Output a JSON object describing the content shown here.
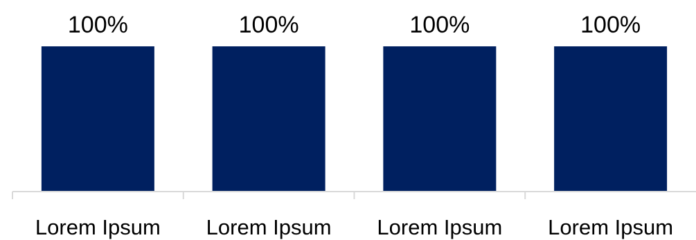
{
  "chart_data": {
    "type": "bar",
    "title": "",
    "xlabel": "",
    "ylabel": "",
    "categories": [
      "Lorem Ipsum",
      "Lorem Ipsum",
      "Lorem Ipsum",
      "Lorem Ipsum"
    ],
    "values": [
      1.0,
      1.0,
      1.0,
      1.0
    ],
    "data_labels": [
      "100%",
      "100%",
      "100%",
      "100%"
    ],
    "ylim": [
      0,
      1.0
    ],
    "grid": false,
    "legend": "none",
    "colors": {
      "bar": "#002060",
      "axis": "#d9d9d9"
    }
  }
}
